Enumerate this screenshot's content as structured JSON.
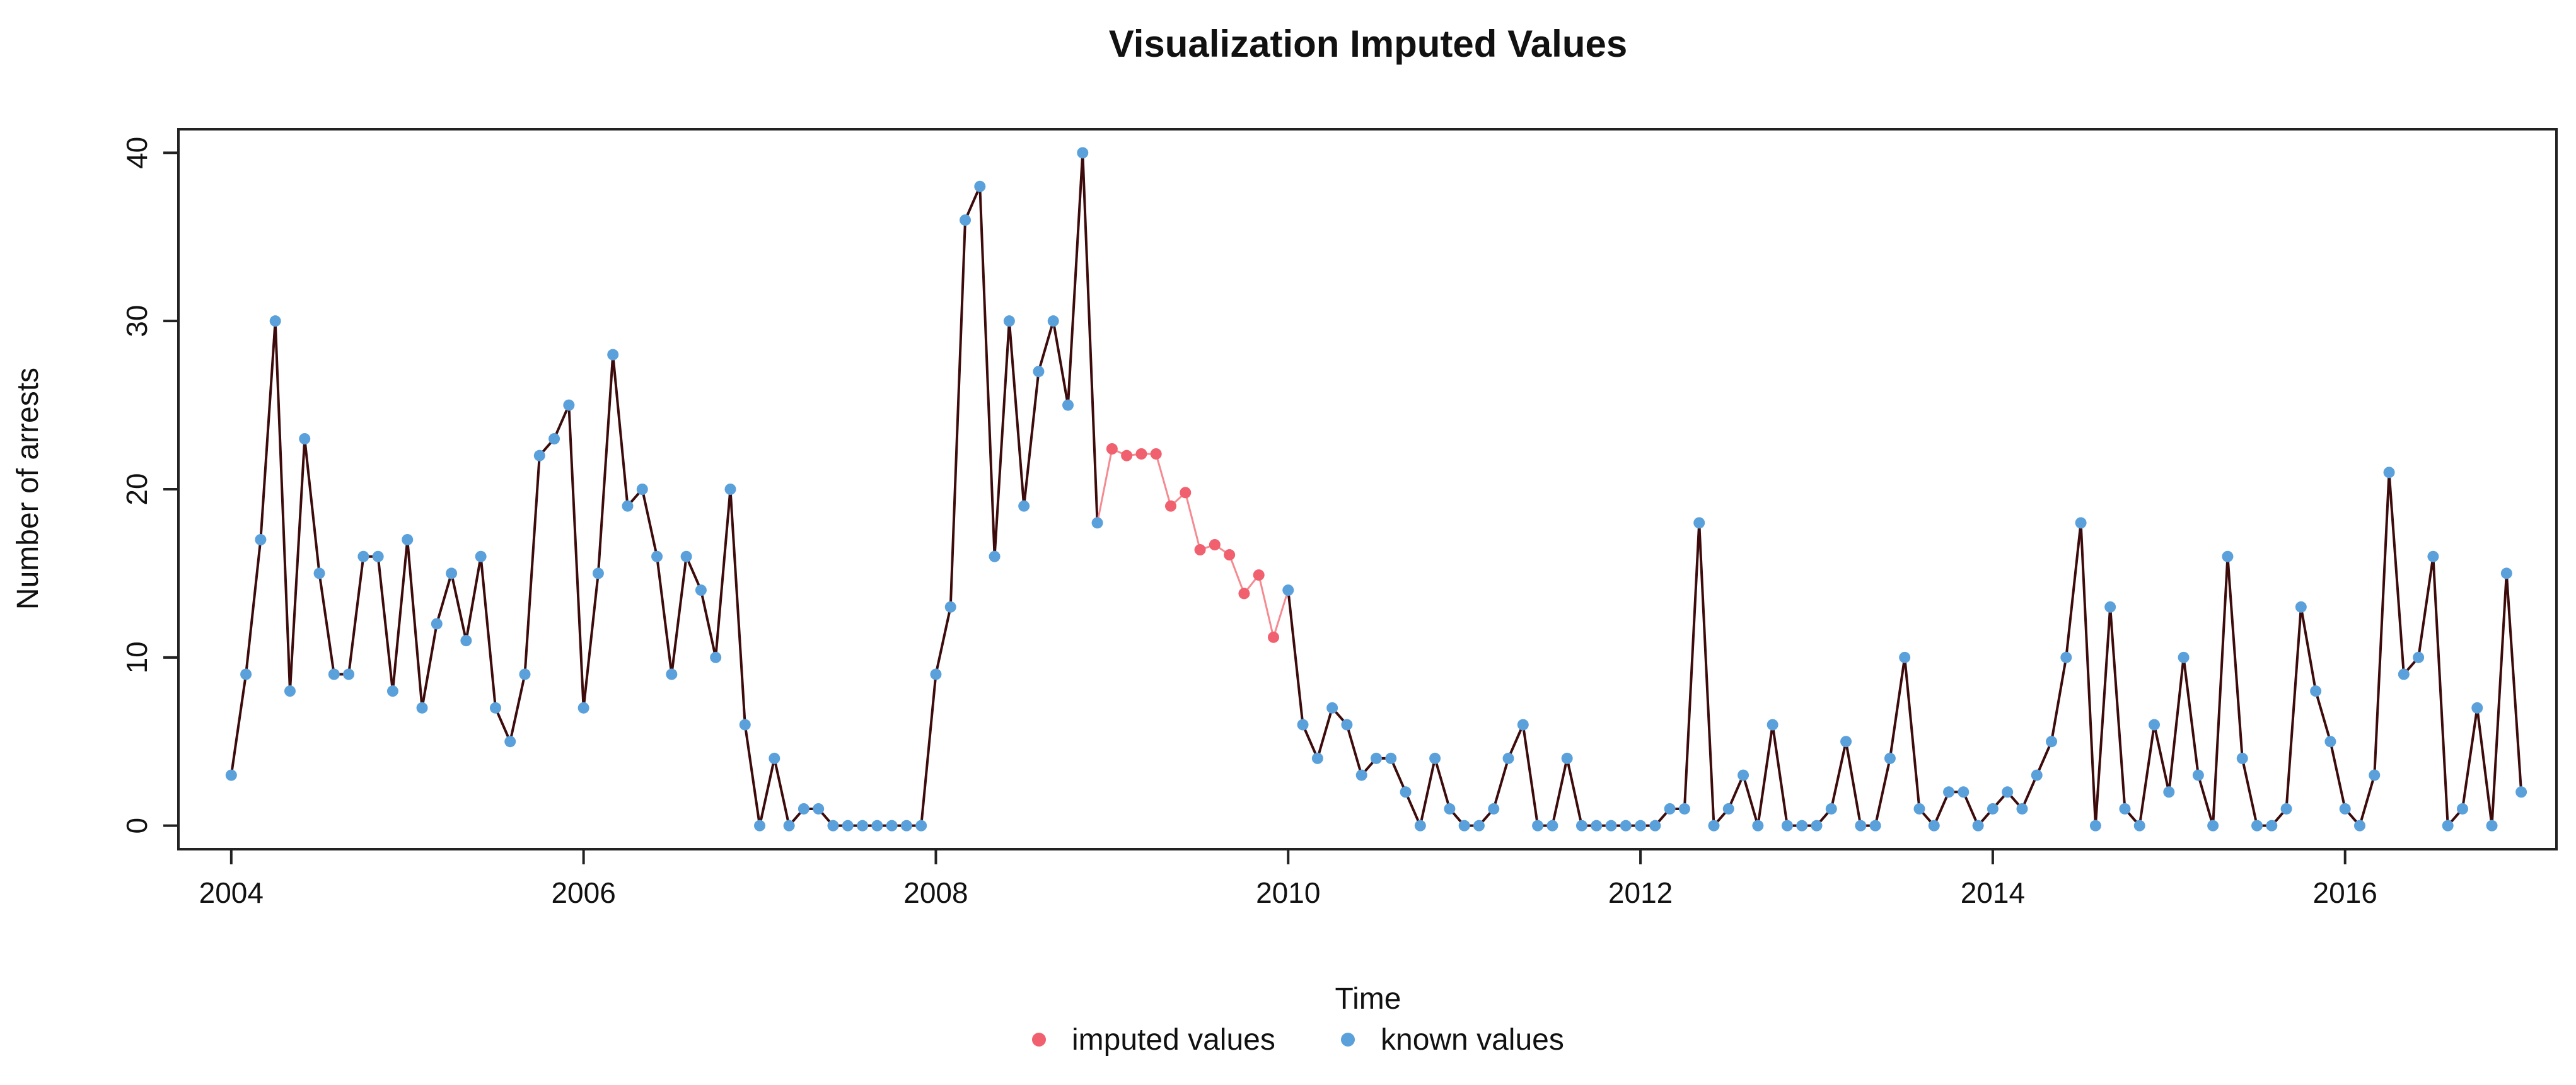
{
  "chart_data": {
    "type": "line",
    "title": "Visualization Imputed Values",
    "xlabel": "Time",
    "ylabel": "Number of arrests",
    "xlim": [
      2003.7,
      2017.2
    ],
    "ylim": [
      -1.4,
      41.4
    ],
    "x_ticks": [
      2004,
      2006,
      2008,
      2010,
      2012,
      2014,
      2016
    ],
    "x_tick_labels": [
      "2004",
      "2006",
      "2008",
      "2010",
      "2012",
      "2014",
      "2016"
    ],
    "y_ticks": [
      0,
      10,
      20,
      30,
      40
    ],
    "y_tick_labels": [
      "0",
      "10",
      "20",
      "30",
      "40"
    ],
    "x_start": 2004,
    "frequency": 12,
    "values": [
      3,
      9,
      17,
      30,
      8,
      23,
      15,
      9,
      9,
      16,
      16,
      8,
      17,
      7,
      12,
      15,
      11,
      16,
      7,
      5,
      9,
      22,
      23,
      25,
      7,
      15,
      28,
      19,
      20,
      16,
      9,
      16,
      14,
      10,
      20,
      6,
      0,
      4,
      0,
      1,
      1,
      0,
      0,
      0,
      0,
      0,
      0,
      0,
      9,
      13,
      36,
      38,
      16,
      30,
      19,
      27,
      30,
      25,
      40,
      18,
      22.4,
      22,
      22.1,
      22.1,
      19,
      19.8,
      16.4,
      16.7,
      16.1,
      13.8,
      14.9,
      11.2,
      14,
      6,
      4,
      7,
      6,
      3,
      4,
      4,
      2,
      0,
      4,
      1,
      0,
      0,
      1,
      4,
      6,
      0,
      0,
      4,
      0,
      0,
      0,
      0,
      0,
      0,
      1,
      1,
      18,
      0,
      1,
      3,
      0,
      6,
      0,
      0,
      0,
      1,
      5,
      0,
      0,
      4,
      10,
      1,
      0,
      2,
      2,
      0,
      1,
      2,
      1,
      3,
      5,
      10,
      18,
      0,
      13,
      1,
      0,
      6,
      2,
      10,
      3,
      0,
      16,
      4,
      0,
      0,
      1,
      13,
      8,
      5,
      1,
      0,
      3,
      21,
      9,
      10,
      16,
      0,
      1,
      7,
      0,
      15,
      2
    ],
    "imputed_indices": [
      60,
      61,
      62,
      63,
      64,
      65,
      66,
      67,
      68,
      69,
      70,
      71
    ],
    "series": [
      {
        "name": "imputed values",
        "color": "#f0606e"
      },
      {
        "name": "known values",
        "color": "#5aa1dc"
      }
    ],
    "line_color": "#3d0b0b",
    "imputed_line_color": "#f58a90",
    "legend_position": "bottom-center",
    "grid": false
  }
}
